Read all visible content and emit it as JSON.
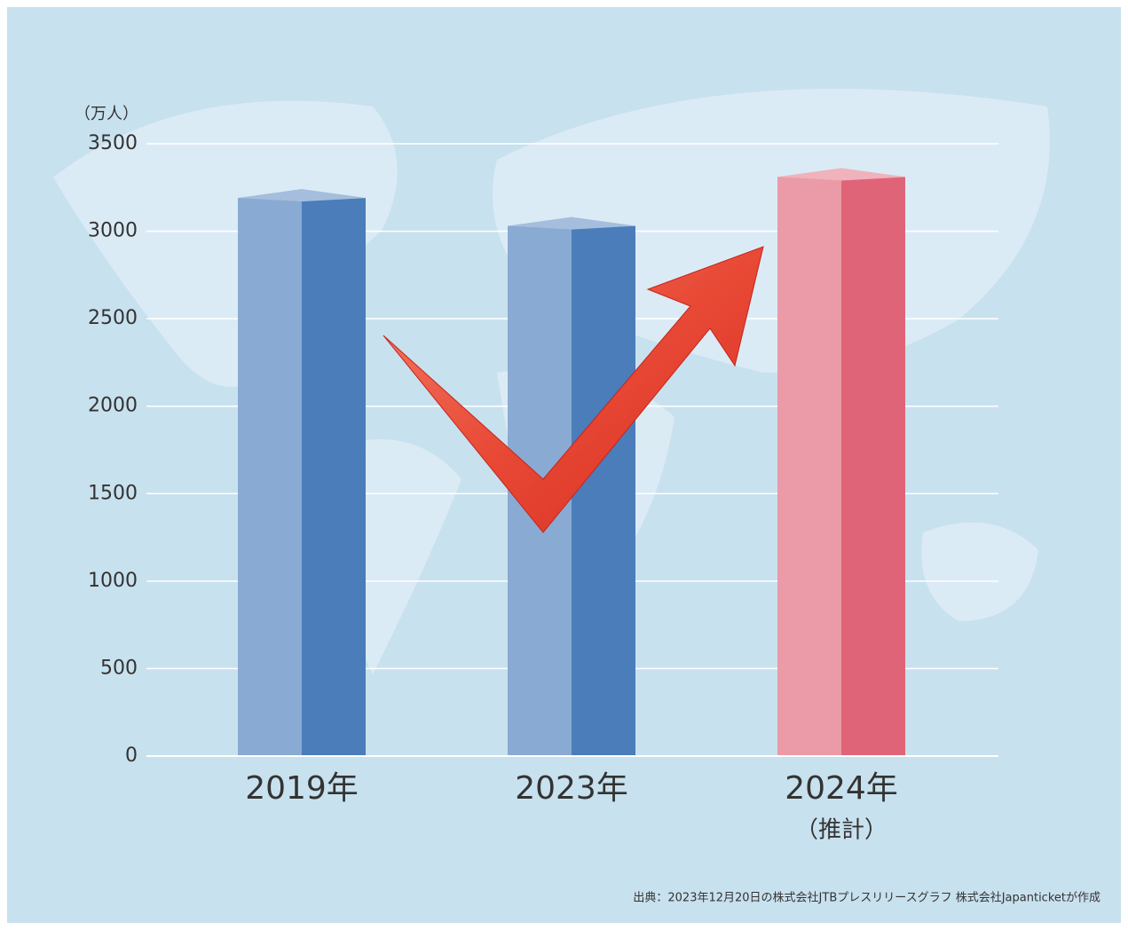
{
  "chart_data": {
    "type": "bar3d",
    "unit_label": "（万人）",
    "categories": [
      "2019年",
      "2023年",
      "2024年"
    ],
    "annotations": [
      "（推計）"
    ],
    "values": [
      3190,
      3030,
      3310
    ],
    "colors": [
      "#4a7dba",
      "#4a7dba",
      "#e06478"
    ],
    "ylim": [
      0,
      3500
    ],
    "yticks": [
      0,
      500,
      1000,
      1500,
      2000,
      2500,
      3000,
      3500
    ],
    "grid": true,
    "source": "出典：2023年12月20日の株式会社JTBプレスリリースグラフ 株式会社Japanticketが作成"
  }
}
